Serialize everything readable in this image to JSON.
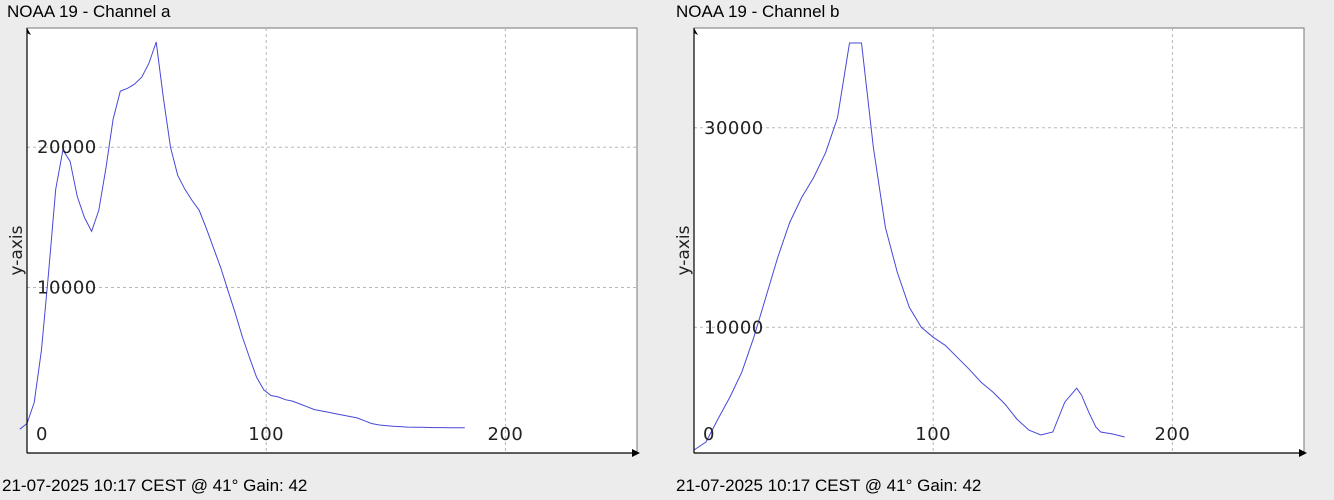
{
  "panels": [
    {
      "title": "NOAA 19 - Channel a",
      "footer": "21-07-2025 10:17 CEST @ 41° Gain: 42"
    },
    {
      "title": "NOAA 19 - Channel b",
      "footer": "21-07-2025 10:17 CEST @ 41° Gain: 42"
    }
  ],
  "chart_data": [
    {
      "type": "line",
      "title": "NOAA 19 - Channel a",
      "xlabel": "",
      "ylabel": "y-axis",
      "xlim": [
        0,
        255
      ],
      "ylim": [
        -1800,
        28500
      ],
      "x_ticks": [
        0,
        100,
        200
      ],
      "y_ticks": [
        10000,
        20000
      ],
      "grid": true,
      "color": "#4848d8",
      "series": [
        {
          "x": [
            -3,
            0,
            3,
            6,
            9,
            12,
            15,
            18,
            21,
            24,
            27,
            30,
            33,
            36,
            39,
            42,
            45,
            48,
            51,
            54,
            57,
            60,
            63,
            66,
            69,
            72,
            75,
            78,
            81,
            84,
            87,
            90,
            93,
            96,
            99,
            102,
            105,
            108,
            111,
            114,
            117,
            120,
            123,
            126,
            129,
            132,
            135,
            138,
            141,
            144,
            147,
            150,
            153,
            156,
            159,
            162,
            165,
            168,
            171,
            174,
            177,
            180,
            183
          ],
          "y": [
            -100,
            300,
            1800,
            5500,
            11000,
            17000,
            19800,
            19000,
            16500,
            15000,
            14000,
            15500,
            18500,
            22000,
            24000,
            24200,
            24500,
            25000,
            26000,
            27500,
            23500,
            20000,
            18000,
            17000,
            16200,
            15500,
            14200,
            12800,
            11400,
            9800,
            8200,
            6500,
            5000,
            3600,
            2700,
            2300,
            2200,
            2000,
            1900,
            1700,
            1500,
            1300,
            1200,
            1100,
            1000,
            900,
            800,
            700,
            500,
            300,
            200,
            150,
            100,
            80,
            50,
            40,
            30,
            20,
            10,
            10,
            0,
            0,
            0
          ]
        }
      ]
    },
    {
      "type": "line",
      "title": "NOAA 19 - Channel b",
      "xlabel": "",
      "ylabel": "y-axis",
      "xlim": [
        0,
        255
      ],
      "ylim": [
        -2600,
        40000
      ],
      "x_ticks": [
        0,
        100,
        200
      ],
      "y_ticks": [
        10000,
        30000
      ],
      "grid": true,
      "color": "#4848d8",
      "series": [
        {
          "x": [
            0,
            5,
            10,
            15,
            20,
            25,
            30,
            35,
            40,
            45,
            50,
            55,
            60,
            65,
            70,
            75,
            80,
            85,
            90,
            95,
            100,
            105,
            110,
            115,
            120,
            125,
            130,
            135,
            140,
            145,
            150,
            155,
            160,
            162,
            165,
            168,
            170,
            175,
            180
          ],
          "y": [
            -2300,
            -1500,
            800,
            3000,
            5500,
            9000,
            13000,
            17000,
            20500,
            23000,
            25000,
            27500,
            31000,
            38500,
            38500,
            28000,
            20000,
            15500,
            12000,
            10000,
            9000,
            8200,
            7000,
            5800,
            4500,
            3500,
            2300,
            800,
            -300,
            -800,
            -500,
            2500,
            3900,
            3200,
            1500,
            0,
            -500,
            -700,
            -1000
          ]
        }
      ]
    }
  ]
}
